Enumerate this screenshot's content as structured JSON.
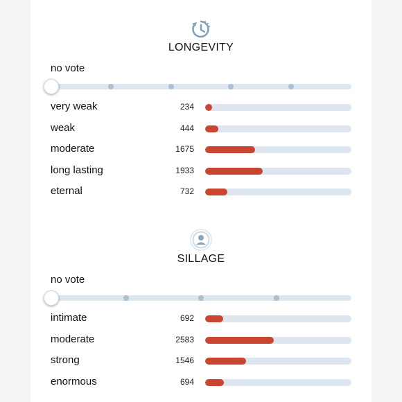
{
  "colors": {
    "accent": "#c8452f",
    "track": "#dde6ef",
    "dot": "#a9bfd3",
    "icon": "#7f9fba"
  },
  "longevity": {
    "icon": "clock-arrow-icon",
    "title": "LONGEVITY",
    "vote_label": "no vote",
    "slider_steps": 5,
    "slider_value_index": 0,
    "max_count": 4900,
    "options": [
      {
        "label": "very weak",
        "count": "234",
        "value": 234
      },
      {
        "label": "weak",
        "count": "444",
        "value": 444
      },
      {
        "label": "moderate",
        "count": "1675",
        "value": 1675
      },
      {
        "label": "long lasting",
        "count": "1933",
        "value": 1933
      },
      {
        "label": "eternal",
        "count": "732",
        "value": 732
      }
    ]
  },
  "sillage": {
    "icon": "person-radiating-icon",
    "title": "SILLAGE",
    "vote_label": "no vote",
    "slider_steps": 4,
    "slider_value_index": 0,
    "max_count": 5510,
    "options": [
      {
        "label": "intimate",
        "count": "692",
        "value": 692
      },
      {
        "label": "moderate",
        "count": "2583",
        "value": 2583
      },
      {
        "label": "strong",
        "count": "1546",
        "value": 1546
      },
      {
        "label": "enormous",
        "count": "694",
        "value": 694
      }
    ]
  }
}
